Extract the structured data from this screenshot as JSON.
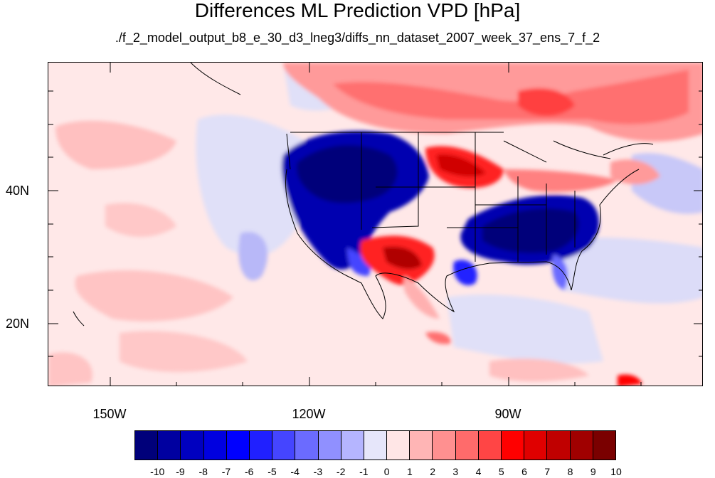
{
  "title": "Differences ML Prediction VPD [hPa]",
  "subtitle": "./f_2_model_output_b8_e_30_d3_lneg3/diffs_nn_dataset_2007_week_37_ens_7_f_2",
  "map": {
    "lon_range": [
      -160,
      -62
    ],
    "lat_range": [
      11,
      60
    ],
    "lat_labels": [
      "40N",
      "20N"
    ],
    "lon_labels": [
      "150W",
      "120W",
      "90W"
    ]
  },
  "colorbar": {
    "labels": [
      "-10",
      "-9",
      "-8",
      "-7",
      "-6",
      "-5",
      "-4",
      "-3",
      "-2",
      "-1",
      "0",
      "1",
      "2",
      "3",
      "4",
      "5",
      "6",
      "7",
      "8",
      "9",
      "10"
    ],
    "colors": [
      "#00007a",
      "#0000a0",
      "#0000c0",
      "#0000e0",
      "#0000ff",
      "#2020ff",
      "#4545ff",
      "#6b6bff",
      "#9090ff",
      "#b5b5ff",
      "#e6e6fa",
      "#ffe6e6",
      "#ffb5b5",
      "#ff9090",
      "#ff6b6b",
      "#ff4545",
      "#ff0000",
      "#e00000",
      "#c00000",
      "#a00000",
      "#7a0000"
    ]
  }
}
